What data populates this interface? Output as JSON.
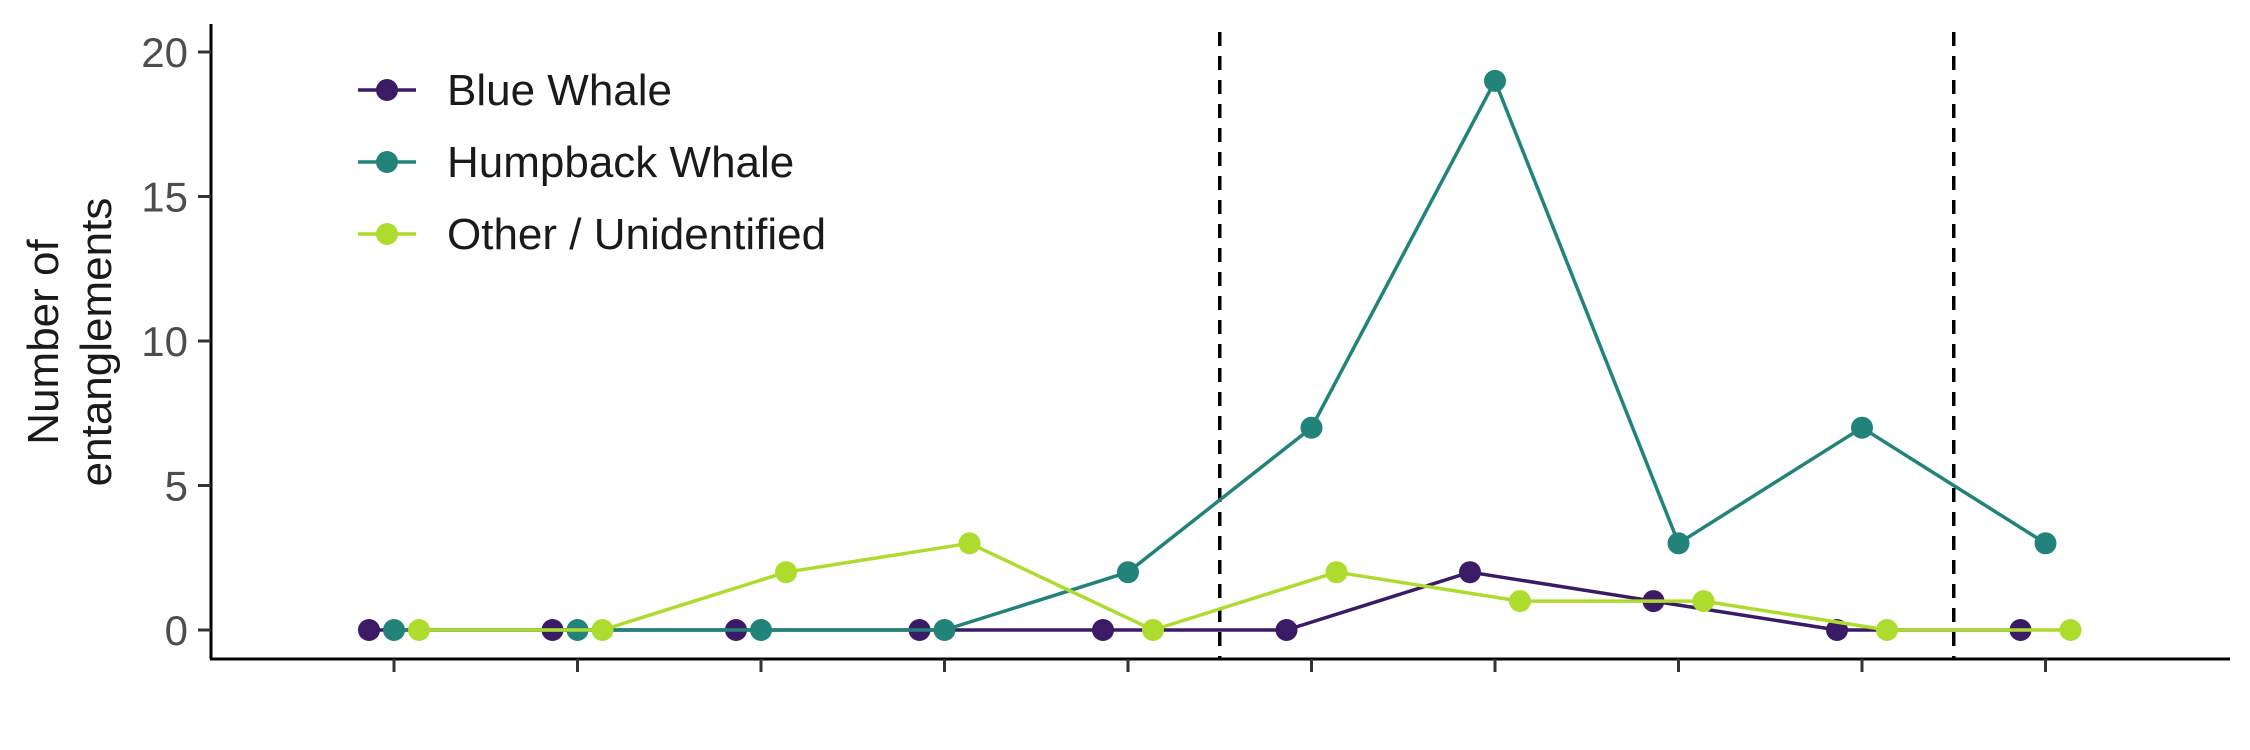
{
  "chart_data": {
    "type": "line",
    "ylabel_lines": [
      "Number of",
      "entanglements"
    ],
    "xlabel": "",
    "ylim": [
      -1,
      21
    ],
    "yticks": [
      0,
      5,
      10,
      15,
      20
    ],
    "x_count": 10,
    "series": [
      {
        "name": "Blue Whale",
        "color": "#3b1a66",
        "values": [
          0,
          0,
          0,
          0,
          0,
          0,
          2,
          1,
          0,
          0
        ]
      },
      {
        "name": "Humpback Whale",
        "color": "#21837a",
        "values": [
          0,
          0,
          0,
          0,
          2,
          7,
          19,
          3,
          7,
          3
        ]
      },
      {
        "name": "Other / Unidentified",
        "color": "#aedc2e",
        "values": [
          0,
          0,
          2,
          3,
          0,
          2,
          1,
          1,
          0,
          0
        ]
      }
    ],
    "vlines": [
      4.5,
      8.5
    ],
    "legend_position": "top-left",
    "grid": false
  }
}
